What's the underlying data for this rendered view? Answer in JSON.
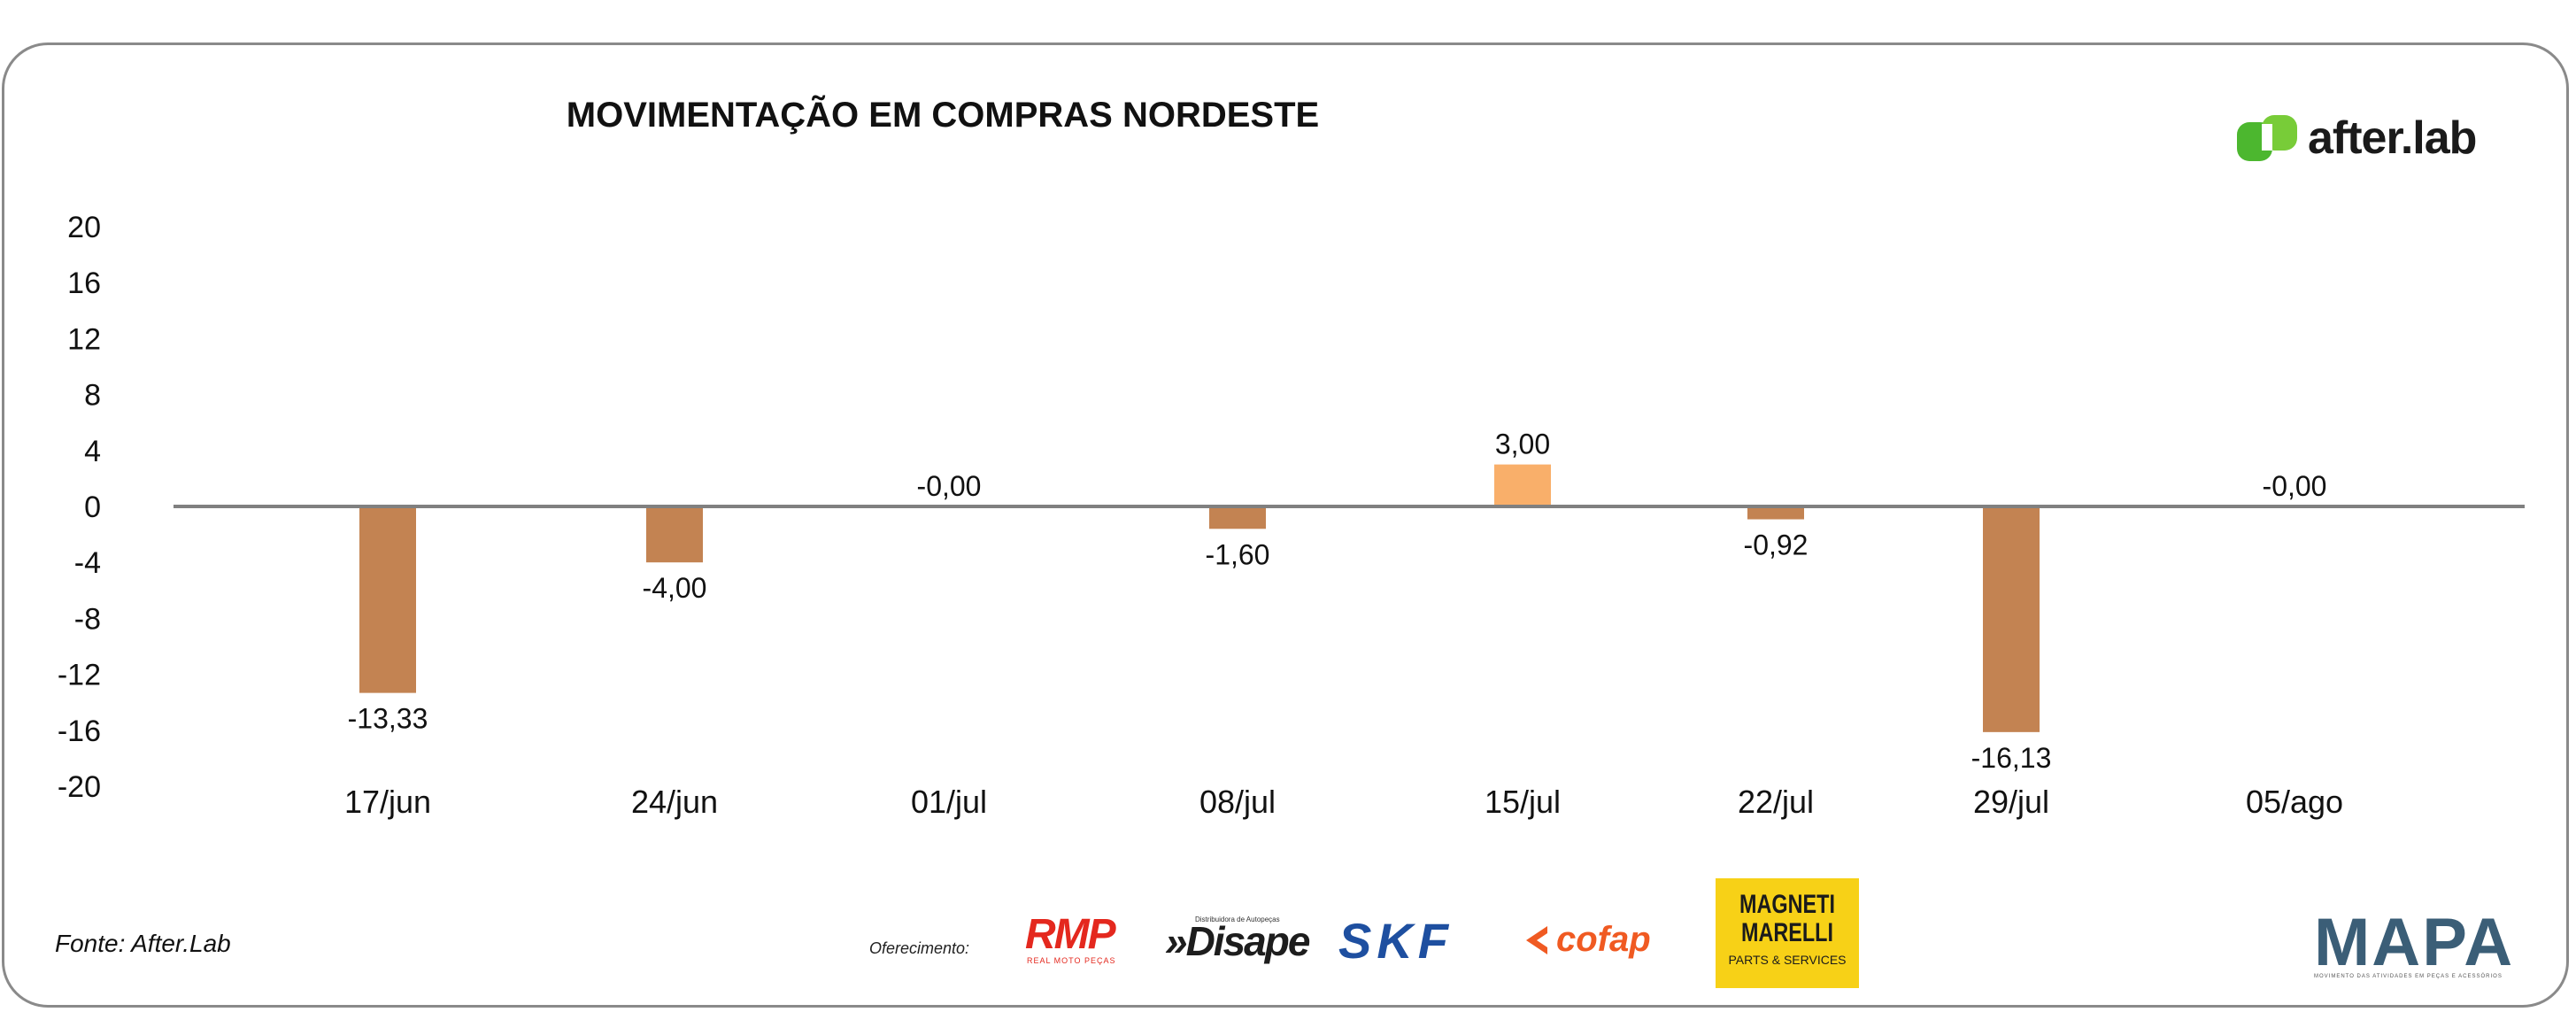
{
  "chart_data": {
    "type": "bar",
    "title": "MOVIMENTAÇÃO EM COMPRAS NORDESTE",
    "categories": [
      "17/jun",
      "24/jun",
      "01/jul",
      "08/jul",
      "15/jul",
      "22/jul",
      "29/jul",
      "05/ago"
    ],
    "values": [
      -13.33,
      -4.0,
      -0.0,
      -1.6,
      3.0,
      -0.92,
      -16.13,
      -0.0
    ],
    "data_labels": [
      "-13,33",
      "-4,00",
      "-0,00",
      "-1,60",
      "3,00",
      "-0,92",
      "-16,13",
      "-0,00"
    ],
    "ylim": [
      -20,
      20
    ],
    "yticks": [
      20,
      16,
      12,
      8,
      4,
      0,
      -4,
      -8,
      -12,
      -16,
      -20
    ],
    "grid": false,
    "colors": {
      "negative": "#c38352",
      "positive": "#f9af6a",
      "axis": "#808080"
    }
  },
  "brand": {
    "name": "after.lab"
  },
  "footer": {
    "source": "Fonte: After.Lab",
    "sponsor_label": "Oferecimento:",
    "sponsors": {
      "rmp": "RMP",
      "rmp_sub": "REAL MOTO PEÇAS",
      "disape": "»Disape",
      "disape_sub": "Distribuidora de Autopeças",
      "skf": "SKF",
      "cofap": "cofap",
      "magneti_line1": "MAGNETI",
      "magneti_line2": "MARELLI",
      "magneti_sub": "PARTS & SERVICES",
      "mapa": "MAPA",
      "mapa_sub": "MOVIMENTO DAS ATIVIDADES EM PEÇAS E ACESSÓRIOS"
    }
  }
}
